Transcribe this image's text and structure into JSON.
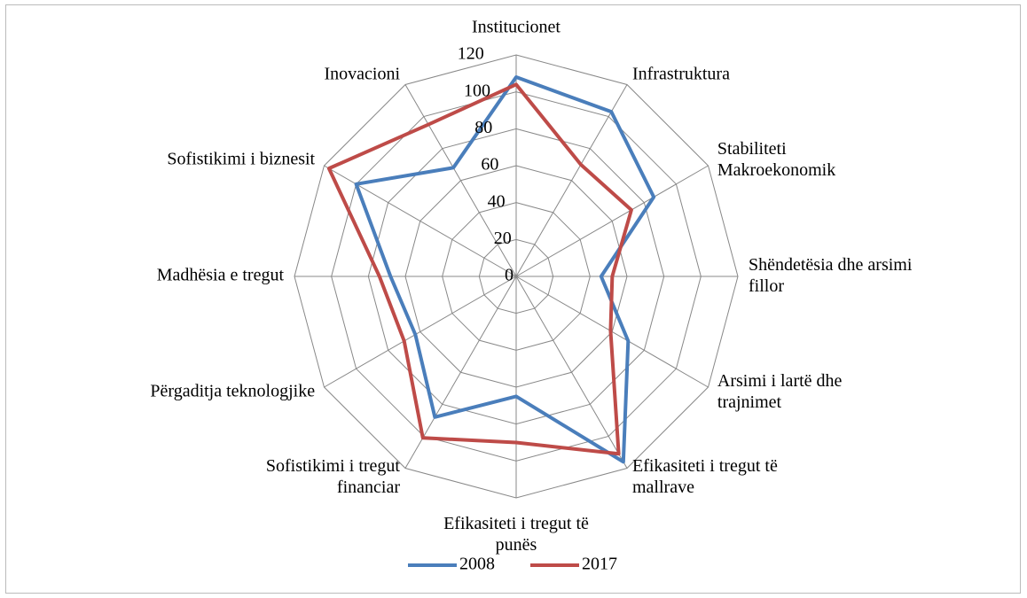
{
  "chart_data": {
    "type": "radar",
    "categories": [
      "Institucionet",
      "Infrastruktura",
      "Stabiliteti\nMakroekonomik",
      "Shëndetësia dhe arsimi\nfillor",
      "Arsimi i lartë dhe\ntrajnimet",
      "Efikasiteti i tregut të\nmallrave",
      "Efikasiteti i tregut të\npunës",
      "Sofistikimi i tregut\nfinanciar",
      "Përgaditja teknologjike",
      "Madhësia e tregut",
      "Sofistikimi i biznesit",
      "Inovacioni"
    ],
    "series": [
      {
        "name": "2008",
        "color": "#4a7ebb",
        "values": [
          108,
          103,
          86,
          46,
          70,
          116,
          65,
          88,
          63,
          68,
          100,
          68
        ]
      },
      {
        "name": "2017",
        "color": "#be4b48",
        "values": [
          104,
          70,
          72,
          52,
          59,
          111,
          90,
          101,
          70,
          74,
          117,
          95
        ]
      }
    ],
    "ylim": [
      0,
      120
    ],
    "yticks": [
      0,
      20,
      40,
      60,
      80,
      100,
      120
    ],
    "grid": true,
    "legend": "bottom"
  }
}
